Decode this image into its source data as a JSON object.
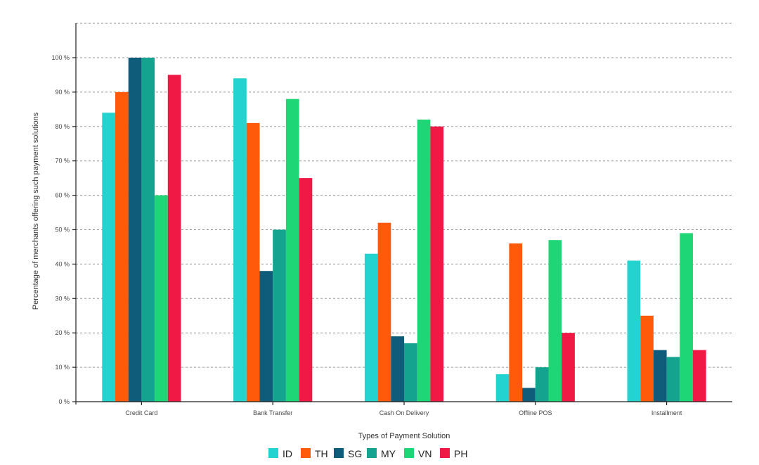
{
  "chart_data": {
    "type": "bar",
    "title": "",
    "xlabel": "Types of Payment Solution",
    "ylabel": "Percentage of merchants offering such payment solutions",
    "categories": [
      "Credit Card",
      "Bank Transfer",
      "Cash On Delivery",
      "Offline POS",
      "Installment"
    ],
    "yticks": [
      "0 %",
      "10 %",
      "20 %",
      "30 %",
      "40 %",
      "50 %",
      "60 %",
      "70 %",
      "80 %",
      "90 %",
      "100 %"
    ],
    "ylim": [
      0,
      110
    ],
    "grid": true,
    "legend_position": "bottom",
    "series": [
      {
        "name": "ID",
        "color": "#22D3CF",
        "values": [
          84,
          94,
          43,
          8,
          41
        ]
      },
      {
        "name": "TH",
        "color": "#FF5A0A",
        "values": [
          90,
          81,
          52,
          46,
          25
        ]
      },
      {
        "name": "SG",
        "color": "#0E5C7A",
        "values": [
          100,
          38,
          19,
          4,
          15
        ]
      },
      {
        "name": "MY",
        "color": "#14A38E",
        "values": [
          100,
          50,
          17,
          10,
          13
        ]
      },
      {
        "name": "VN",
        "color": "#1FD676",
        "values": [
          60,
          88,
          82,
          47,
          49
        ]
      },
      {
        "name": "PH",
        "color": "#F01845",
        "values": [
          95,
          65,
          80,
          20,
          15
        ]
      }
    ]
  }
}
